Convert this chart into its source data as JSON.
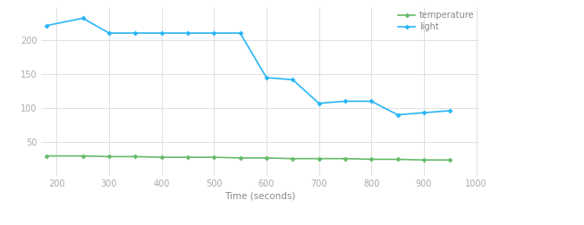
{
  "light_x": [
    180,
    250,
    300,
    350,
    400,
    450,
    500,
    550,
    600,
    650,
    700,
    750,
    800,
    850,
    900,
    950
  ],
  "light_y": [
    222,
    233,
    211,
    211,
    211,
    211,
    211,
    211,
    145,
    142,
    107,
    110,
    110,
    90,
    93,
    96
  ],
  "temp_x": [
    180,
    250,
    300,
    350,
    400,
    450,
    500,
    550,
    600,
    650,
    700,
    750,
    800,
    850,
    900,
    950
  ],
  "temp_y": [
    29,
    29,
    28,
    28,
    27,
    27,
    27,
    26,
    26,
    25,
    25,
    25,
    24,
    24,
    23,
    23
  ],
  "light_color": "#29b6f6",
  "temp_color": "#66bb6a",
  "xlabel": "Time (seconds)",
  "xlim": [
    170,
    1005
  ],
  "ylim": [
    0,
    250
  ],
  "yticks": [
    50,
    100,
    150,
    200
  ],
  "xticks": [
    200,
    300,
    400,
    500,
    600,
    700,
    800,
    900,
    1000
  ],
  "legend_labels": [
    "temperature",
    "light"
  ],
  "background_color": "#ffffff",
  "grid_color": "#e0e0e0",
  "marker": "D",
  "marker_size": 3,
  "line_width": 1.2
}
